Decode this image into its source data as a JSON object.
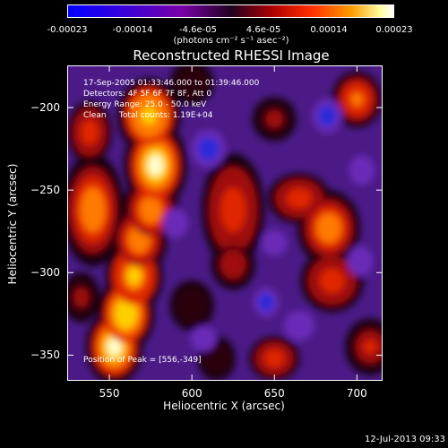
{
  "colorbar": {
    "ticks": [
      "-0.00023",
      "-0.00014",
      "-4.6e-05",
      "4.6e-05",
      "0.00014",
      "0.00023"
    ],
    "tick_fractions": [
      0,
      0.2,
      0.4,
      0.6,
      0.8,
      1
    ],
    "unit": "(photons cm⁻² s⁻¹ asec⁻²)",
    "colors": [
      "#0000ff",
      "#7a00a8",
      "#200020",
      "#b00000",
      "#ff9a00",
      "#ffffff"
    ]
  },
  "chart_data": {
    "type": "heatmap",
    "title": "Reconstructed RHESSI Image",
    "xlabel": "Heliocentric X (arcsec)",
    "ylabel": "Heliocentric Y (arcsec)",
    "xlim": [
      525,
      715
    ],
    "ylim": [
      -365,
      -175
    ],
    "x_ticks": [
      550,
      600,
      650,
      700
    ],
    "y_ticks": [
      -200,
      -250,
      -300,
      -350
    ],
    "value_range": [
      -0.00023,
      0.00023
    ],
    "blobs": [
      {
        "x": 553,
        "y": -345,
        "sx": 9,
        "sy": 12,
        "v": 1.0
      },
      {
        "x": 560,
        "y": -325,
        "sx": 9,
        "sy": 12,
        "v": 0.9
      },
      {
        "x": 565,
        "y": -302,
        "sx": 9,
        "sy": 12,
        "v": 0.8
      },
      {
        "x": 568,
        "y": -280,
        "sx": 9,
        "sy": 11,
        "v": 0.7
      },
      {
        "x": 575,
        "y": -262,
        "sx": 9,
        "sy": 11,
        "v": 0.75
      },
      {
        "x": 578,
        "y": -235,
        "sx": 10,
        "sy": 14,
        "v": 0.95
      },
      {
        "x": 574,
        "y": -205,
        "sx": 10,
        "sy": 12,
        "v": 0.85
      },
      {
        "x": 540,
        "y": -262,
        "sx": 10,
        "sy": 18,
        "v": 0.75
      },
      {
        "x": 538,
        "y": -215,
        "sx": 7,
        "sy": 10,
        "v": 0.55
      },
      {
        "x": 533,
        "y": -315,
        "sx": 6,
        "sy": 8,
        "v": 0.4
      },
      {
        "x": 625,
        "y": -262,
        "sx": 10,
        "sy": 18,
        "v": 0.6
      },
      {
        "x": 625,
        "y": -295,
        "sx": 7,
        "sy": 8,
        "v": 0.45
      },
      {
        "x": 665,
        "y": -255,
        "sx": 10,
        "sy": 8,
        "v": 0.55
      },
      {
        "x": 683,
        "y": -273,
        "sx": 10,
        "sy": 12,
        "v": 0.7
      },
      {
        "x": 685,
        "y": -305,
        "sx": 10,
        "sy": 10,
        "v": 0.6
      },
      {
        "x": 700,
        "y": -195,
        "sx": 8,
        "sy": 9,
        "v": 0.65
      },
      {
        "x": 650,
        "y": -207,
        "sx": 7,
        "sy": 7,
        "v": 0.4
      },
      {
        "x": 650,
        "y": -352,
        "sx": 8,
        "sy": 7,
        "v": 0.55
      },
      {
        "x": 708,
        "y": -345,
        "sx": 8,
        "sy": 9,
        "v": 0.5
      },
      {
        "x": 600,
        "y": -320,
        "sx": 7,
        "sy": 8,
        "v": 0.3
      },
      {
        "x": 615,
        "y": -352,
        "sx": 6,
        "sy": 7,
        "v": 0.3
      },
      {
        "x": 600,
        "y": -185,
        "sx": 7,
        "sy": 7,
        "v": 0.25
      },
      {
        "x": 610,
        "y": -225,
        "sx": 8,
        "sy": 9,
        "v": -0.55
      },
      {
        "x": 682,
        "y": -205,
        "sx": 7,
        "sy": 8,
        "v": -0.6
      },
      {
        "x": 645,
        "y": -318,
        "sx": 6,
        "sy": 7,
        "v": -0.55
      },
      {
        "x": 607,
        "y": -340,
        "sx": 6,
        "sy": 6,
        "v": -0.5
      },
      {
        "x": 665,
        "y": -332,
        "sx": 7,
        "sy": 7,
        "v": -0.45
      },
      {
        "x": 702,
        "y": -293,
        "sx": 6,
        "sy": 7,
        "v": -0.45
      },
      {
        "x": 703,
        "y": -238,
        "sx": 6,
        "sy": 7,
        "v": -0.4
      },
      {
        "x": 590,
        "y": -270,
        "sx": 6,
        "sy": 7,
        "v": -0.35
      },
      {
        "x": 650,
        "y": -282,
        "sx": 6,
        "sy": 6,
        "v": -0.35
      }
    ]
  },
  "annotations": {
    "line1": "17-Sep-2005 01:33:46.000 to 01:39:46.000",
    "line2": "Detectors: 4F 5F 6F 7F 8F, Att 0",
    "line3": "Energy Range: 25.0 - 50.0 keV",
    "line4": "Clean     Total counts: 1.19E+04",
    "peak": "Position of Peak = [556,-349]"
  },
  "timestamp": "12-Jul-2013 09:33"
}
